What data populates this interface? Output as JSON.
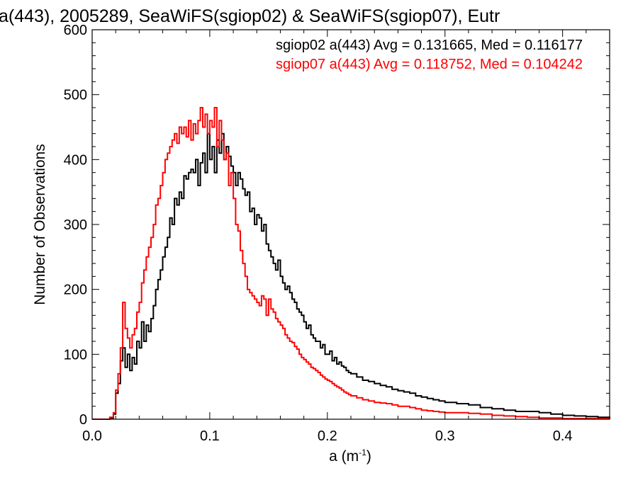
{
  "chart_data": {
    "type": "line",
    "title": "a(443), 2005289, SeaWiFS(sgiop02) & SeaWiFS(sgiop07), Eutr",
    "xlabel": "a (m",
    "xlabel_sup": "-1",
    "xlabel_close": ")",
    "ylabel": "Number of Observations",
    "xlim": [
      0.0,
      0.44
    ],
    "ylim": [
      0,
      600
    ],
    "x_ticks": [
      "0.0",
      "0.1",
      "0.2",
      "0.3",
      "0.4"
    ],
    "y_ticks": [
      "0",
      "100",
      "200",
      "300",
      "400",
      "500",
      "600"
    ],
    "grid": false,
    "legend_placement": "top-right",
    "series": [
      {
        "name": "sgiop02 a(443) Avg = 0.131665, Med = 0.116177",
        "color": "#000000",
        "x": [
          0.0,
          0.01,
          0.015,
          0.018,
          0.02,
          0.022,
          0.024,
          0.026,
          0.028,
          0.03,
          0.032,
          0.034,
          0.036,
          0.038,
          0.04,
          0.042,
          0.044,
          0.046,
          0.048,
          0.05,
          0.052,
          0.054,
          0.056,
          0.058,
          0.06,
          0.062,
          0.064,
          0.066,
          0.068,
          0.07,
          0.072,
          0.074,
          0.076,
          0.078,
          0.08,
          0.082,
          0.084,
          0.086,
          0.088,
          0.09,
          0.092,
          0.094,
          0.096,
          0.098,
          0.1,
          0.102,
          0.104,
          0.106,
          0.108,
          0.11,
          0.112,
          0.114,
          0.116,
          0.118,
          0.12,
          0.122,
          0.124,
          0.126,
          0.128,
          0.13,
          0.132,
          0.134,
          0.136,
          0.138,
          0.14,
          0.142,
          0.144,
          0.146,
          0.148,
          0.15,
          0.152,
          0.154,
          0.156,
          0.158,
          0.16,
          0.162,
          0.164,
          0.166,
          0.168,
          0.17,
          0.172,
          0.174,
          0.176,
          0.178,
          0.18,
          0.182,
          0.184,
          0.186,
          0.188,
          0.19,
          0.192,
          0.194,
          0.196,
          0.198,
          0.2,
          0.202,
          0.204,
          0.206,
          0.208,
          0.21,
          0.212,
          0.214,
          0.216,
          0.218,
          0.22,
          0.225,
          0.23,
          0.235,
          0.24,
          0.245,
          0.25,
          0.255,
          0.26,
          0.265,
          0.27,
          0.275,
          0.28,
          0.285,
          0.29,
          0.295,
          0.3,
          0.31,
          0.32,
          0.33,
          0.34,
          0.35,
          0.36,
          0.37,
          0.38,
          0.39,
          0.4,
          0.41,
          0.42,
          0.43,
          0.44
        ],
        "values": [
          0,
          0,
          2,
          8,
          40,
          55,
          90,
          110,
          80,
          100,
          75,
          95,
          85,
          120,
          110,
          150,
          120,
          145,
          135,
          155,
          175,
          200,
          215,
          230,
          250,
          265,
          280,
          310,
          300,
          340,
          330,
          350,
          340,
          375,
          370,
          380,
          385,
          380,
          400,
          360,
          395,
          410,
          380,
          440,
          400,
          420,
          380,
          430,
          410,
          440,
          400,
          420,
          405,
          390,
          380,
          360,
          380,
          370,
          355,
          345,
          350,
          320,
          325,
          300,
          315,
          310,
          290,
          300,
          270,
          260,
          250,
          240,
          230,
          245,
          220,
          210,
          200,
          205,
          195,
          185,
          180,
          170,
          165,
          160,
          150,
          140,
          145,
          130,
          125,
          120,
          120,
          110,
          115,
          100,
          100,
          105,
          90,
          95,
          85,
          88,
          82,
          80,
          75,
          72,
          70,
          65,
          60,
          58,
          55,
          52,
          50,
          46,
          44,
          42,
          40,
          36,
          34,
          32,
          30,
          28,
          26,
          24,
          22,
          18,
          16,
          14,
          12,
          12,
          10,
          8,
          6,
          5,
          4,
          3,
          2
        ]
      },
      {
        "name": "sgiop07 a(443) Avg = 0.118752, Med = 0.104242",
        "color": "#ff0000",
        "x": [
          0.0,
          0.01,
          0.015,
          0.018,
          0.02,
          0.022,
          0.024,
          0.026,
          0.028,
          0.03,
          0.032,
          0.034,
          0.036,
          0.038,
          0.04,
          0.042,
          0.044,
          0.046,
          0.048,
          0.05,
          0.052,
          0.054,
          0.056,
          0.058,
          0.06,
          0.062,
          0.064,
          0.066,
          0.068,
          0.07,
          0.072,
          0.074,
          0.076,
          0.078,
          0.08,
          0.082,
          0.084,
          0.086,
          0.088,
          0.09,
          0.092,
          0.094,
          0.096,
          0.098,
          0.1,
          0.102,
          0.104,
          0.106,
          0.108,
          0.11,
          0.112,
          0.114,
          0.116,
          0.118,
          0.12,
          0.122,
          0.124,
          0.126,
          0.128,
          0.13,
          0.132,
          0.134,
          0.136,
          0.138,
          0.14,
          0.142,
          0.144,
          0.146,
          0.148,
          0.15,
          0.152,
          0.154,
          0.156,
          0.158,
          0.16,
          0.162,
          0.164,
          0.166,
          0.168,
          0.17,
          0.172,
          0.174,
          0.176,
          0.178,
          0.18,
          0.182,
          0.184,
          0.186,
          0.188,
          0.19,
          0.192,
          0.194,
          0.196,
          0.198,
          0.2,
          0.202,
          0.204,
          0.206,
          0.208,
          0.21,
          0.212,
          0.214,
          0.216,
          0.218,
          0.22,
          0.225,
          0.23,
          0.235,
          0.24,
          0.245,
          0.25,
          0.255,
          0.26,
          0.265,
          0.27,
          0.275,
          0.28,
          0.285,
          0.29,
          0.295,
          0.3,
          0.31,
          0.32,
          0.33,
          0.34,
          0.35,
          0.36,
          0.37,
          0.38,
          0.39,
          0.4,
          0.41,
          0.42,
          0.43,
          0.44
        ],
        "values": [
          0,
          0,
          3,
          10,
          45,
          70,
          110,
          180,
          140,
          125,
          110,
          130,
          140,
          165,
          180,
          210,
          230,
          250,
          265,
          280,
          300,
          330,
          340,
          360,
          380,
          400,
          410,
          420,
          430,
          440,
          425,
          450,
          440,
          450,
          435,
          460,
          430,
          455,
          440,
          460,
          480,
          450,
          470,
          440,
          460,
          450,
          480,
          420,
          460,
          430,
          400,
          410,
          360,
          380,
          340,
          300,
          290,
          260,
          240,
          220,
          200,
          195,
          190,
          185,
          180,
          175,
          190,
          185,
          160,
          185,
          170,
          165,
          155,
          150,
          145,
          140,
          130,
          125,
          120,
          118,
          112,
          108,
          100,
          95,
          92,
          88,
          85,
          80,
          78,
          75,
          72,
          68,
          65,
          62,
          60,
          58,
          55,
          52,
          50,
          48,
          45,
          42,
          40,
          38,
          36,
          33,
          30,
          28,
          26,
          25,
          24,
          22,
          20,
          20,
          18,
          16,
          14,
          13,
          12,
          11,
          10,
          10,
          9,
          8,
          6,
          5,
          4,
          3,
          2,
          2,
          1,
          1,
          1,
          1,
          0
        ]
      }
    ]
  }
}
